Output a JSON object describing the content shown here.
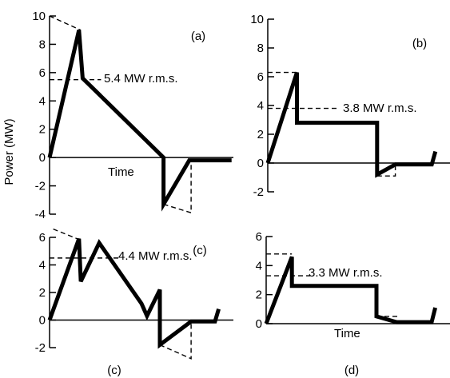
{
  "ylabel": "Power (MW)",
  "chart_data": [
    {
      "id": "a",
      "panel_label": "(a)",
      "type": "line",
      "yticks": [
        10,
        8,
        6,
        4,
        2,
        0,
        -2,
        -4
      ],
      "ylim": [
        -4,
        10
      ],
      "xlabel": "Time",
      "xlim": [
        0,
        1
      ],
      "annotation": "5.4 MW r.m.s.",
      "rms": 5.4,
      "series": [
        {
          "x": [
            0,
            0.16,
            0.18,
            0.62,
            0.62,
            0.76,
            0.99
          ],
          "y": [
            0,
            9,
            5.6,
            0,
            -3.3,
            -0.2,
            -0.2
          ]
        }
      ],
      "dashed": [
        {
          "x": [
            0,
            0.17
          ],
          "y": [
            10,
            9
          ]
        },
        {
          "x": [
            0,
            0.18,
            0.28
          ],
          "y": [
            5.5,
            5.5,
            5.5
          ]
        },
        {
          "x": [
            0.62,
            0.77,
            0.77
          ],
          "y": [
            -3.3,
            -3.9,
            -0.2
          ]
        }
      ]
    },
    {
      "id": "b",
      "panel_label": "(b)",
      "type": "line",
      "yticks": [
        10,
        8,
        6,
        4,
        2,
        0,
        -2
      ],
      "ylim": [
        -2,
        10
      ],
      "xlabel": "",
      "xlim": [
        0,
        1
      ],
      "annotation": "3.8 MW r.m.s.",
      "rms": 3.8,
      "series": [
        {
          "x": [
            0,
            0.16,
            0.16,
            0.6,
            0.6,
            0.7,
            0.9,
            0.92
          ],
          "y": [
            0,
            6.3,
            2.8,
            2.8,
            -0.8,
            -0.1,
            -0.1,
            0.8
          ]
        }
      ],
      "dashed": [
        {
          "x": [
            0,
            0.16
          ],
          "y": [
            6.3,
            6.3
          ]
        },
        {
          "x": [
            0,
            0.16,
            0.38
          ],
          "y": [
            3.8,
            3.8,
            3.8
          ]
        },
        {
          "x": [
            0.6,
            0.7,
            0.7
          ],
          "y": [
            -0.9,
            -0.9,
            -0.1
          ]
        }
      ]
    },
    {
      "id": "c",
      "panel_label": "(c)",
      "type": "line",
      "yticks": [
        6,
        4,
        2,
        0,
        -2
      ],
      "ylim": [
        -2,
        6
      ],
      "xlabel": "",
      "xlim": [
        0,
        1
      ],
      "annotation": "4.4 MW r.m.s.",
      "rms": 4.4,
      "series": [
        {
          "x": [
            0,
            0.16,
            0.17,
            0.27,
            0.5,
            0.53,
            0.6,
            0.6,
            0.77,
            0.9,
            0.92
          ],
          "y": [
            0,
            5.9,
            2.8,
            5.6,
            1.2,
            0.3,
            2.2,
            -1.8,
            -0.1,
            -0.1,
            0.8
          ]
        }
      ],
      "dashed": [
        {
          "x": [
            0.02,
            0.15
          ],
          "y": [
            6.6,
            5.9
          ]
        },
        {
          "x": [
            0,
            0.28,
            0.38
          ],
          "y": [
            4.5,
            4.5,
            4.5
          ]
        },
        {
          "x": [
            0.6,
            0.77,
            0.77
          ],
          "y": [
            -1.8,
            -2.8,
            -0.1
          ]
        }
      ]
    },
    {
      "id": "d",
      "panel_label": "",
      "type": "line",
      "yticks": [
        6,
        4,
        2,
        0
      ],
      "ylim": [
        0,
        6
      ],
      "xlabel": "Time",
      "xlim": [
        0,
        1
      ],
      "annotation": "3.3 MW r.m.s.",
      "rms": 3.3,
      "series": [
        {
          "x": [
            0,
            0.14,
            0.14,
            0.6,
            0.6,
            0.71,
            0.8,
            0.9,
            0.92
          ],
          "y": [
            0,
            4.6,
            2.6,
            2.6,
            0.5,
            0.1,
            0.1,
            0.1,
            1.1
          ]
        }
      ],
      "dashed": [
        {
          "x": [
            0,
            0.14
          ],
          "y": [
            4.8,
            4.8
          ]
        },
        {
          "x": [
            0,
            0.14,
            0.24
          ],
          "y": [
            3.3,
            3.3,
            3.3
          ]
        },
        {
          "x": [
            0.6,
            0.71,
            0.71
          ],
          "y": [
            0.5,
            0.5,
            0.1
          ]
        }
      ]
    }
  ],
  "bottom_labels": [
    "(c)",
    "(d)"
  ]
}
